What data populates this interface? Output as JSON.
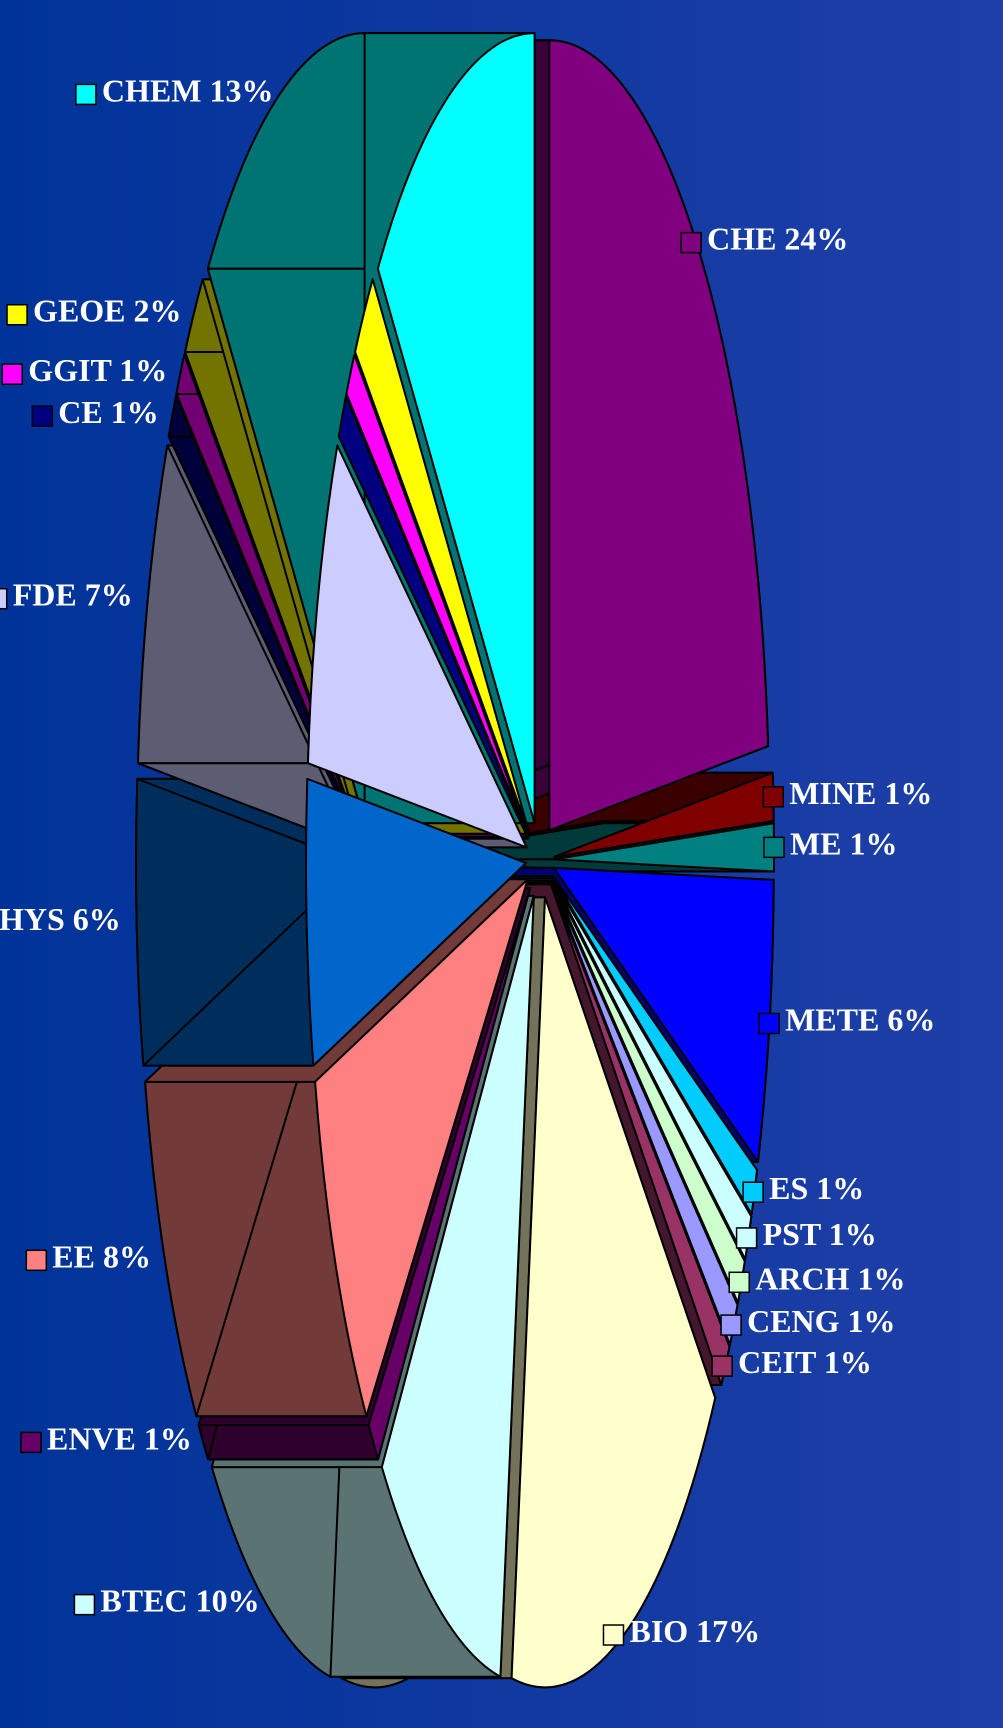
{
  "chart_data": {
    "type": "pie",
    "categories": [
      "CHE",
      "MINE",
      "ME",
      "METE",
      "ES",
      "PST",
      "ARCH",
      "CENG",
      "CEIT",
      "BIO",
      "BTEC",
      "ENVE",
      "EE",
      "PHYS",
      "FDE",
      "CE",
      "GGIT",
      "GEOE",
      "CHEM"
    ],
    "values": [
      24,
      1,
      1,
      6,
      1,
      1,
      1,
      1,
      1,
      17,
      10,
      1,
      8,
      6,
      7,
      1,
      1,
      2,
      13
    ],
    "value_labels": [
      "24%",
      "1%",
      "1%",
      "6%",
      "1%",
      "1%",
      "1%",
      "1%",
      "1%",
      "17%",
      "10%",
      "1%",
      "8%",
      "6%",
      "7%",
      "1%",
      "1%",
      "2%",
      "13%"
    ],
    "colors": [
      "#800080",
      "#800000",
      "#008080",
      "#0000ff",
      "#00ccff",
      "#ccffff",
      "#ccffcc",
      "#9999ff",
      "#993366",
      "#ffffcc",
      "#ccffff",
      "#660066",
      "#ff8080",
      "#0066cc",
      "#ccccff",
      "#000080",
      "#ff00ff",
      "#ffff00",
      "#00ffff"
    ]
  }
}
